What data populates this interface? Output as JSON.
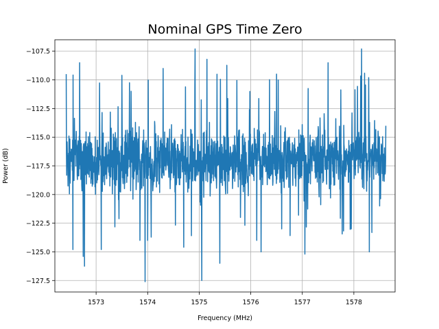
{
  "chart_data": {
    "type": "line",
    "title": "Nominal GPS Time Zero",
    "xlabel": "Frequency (MHz)",
    "ylabel": "Power (dB)",
    "xlim": [
      1572.2,
      1578.8
    ],
    "ylim": [
      -128.5,
      -106.5
    ],
    "x_ticks": [
      1573,
      1574,
      1575,
      1576,
      1577,
      1578
    ],
    "x_tick_labels": [
      "1573",
      "1574",
      "1575",
      "1576",
      "1577",
      "1578"
    ],
    "y_ticks": [
      -107.5,
      -110.0,
      -112.5,
      -115.0,
      -117.5,
      -120.0,
      -122.5,
      -125.0,
      -127.5
    ],
    "y_tick_labels": [
      "−107.5",
      "−110.0",
      "−112.5",
      "−115.0",
      "−117.5",
      "−120.0",
      "−122.5",
      "−125.0",
      "−127.5"
    ],
    "grid": true,
    "series": [
      {
        "color": "#1f77b4",
        "x_range": [
          1572.42,
          1578.62
        ],
        "mean": -117.0,
        "typical_range": [
          -122.5,
          -111.0
        ],
        "min": -127.6,
        "max": -107.2,
        "x": [
          1572.42,
          1572.55,
          1572.68,
          1572.75,
          1573.1,
          1573.5,
          1573.85,
          1573.95,
          1574.0,
          1574.3,
          1574.7,
          1574.92,
          1575.05,
          1575.15,
          1575.4,
          1575.8,
          1576.2,
          1576.5,
          1576.6,
          1577.05,
          1577.5,
          1577.95,
          1578.15,
          1578.3,
          1578.5,
          1578.62
        ],
        "y": [
          -109.5,
          -124.8,
          -108.5,
          -125.4,
          -124.8,
          -109.6,
          -124.0,
          -127.6,
          -124.0,
          -109.0,
          -124.6,
          -107.3,
          -127.5,
          -108.2,
          -126.0,
          -122.0,
          -125.0,
          -109.5,
          -123.0,
          -125.2,
          -108.5,
          -123.0,
          -107.3,
          -125.0,
          -121.0,
          -114.0
        ]
      }
    ]
  }
}
